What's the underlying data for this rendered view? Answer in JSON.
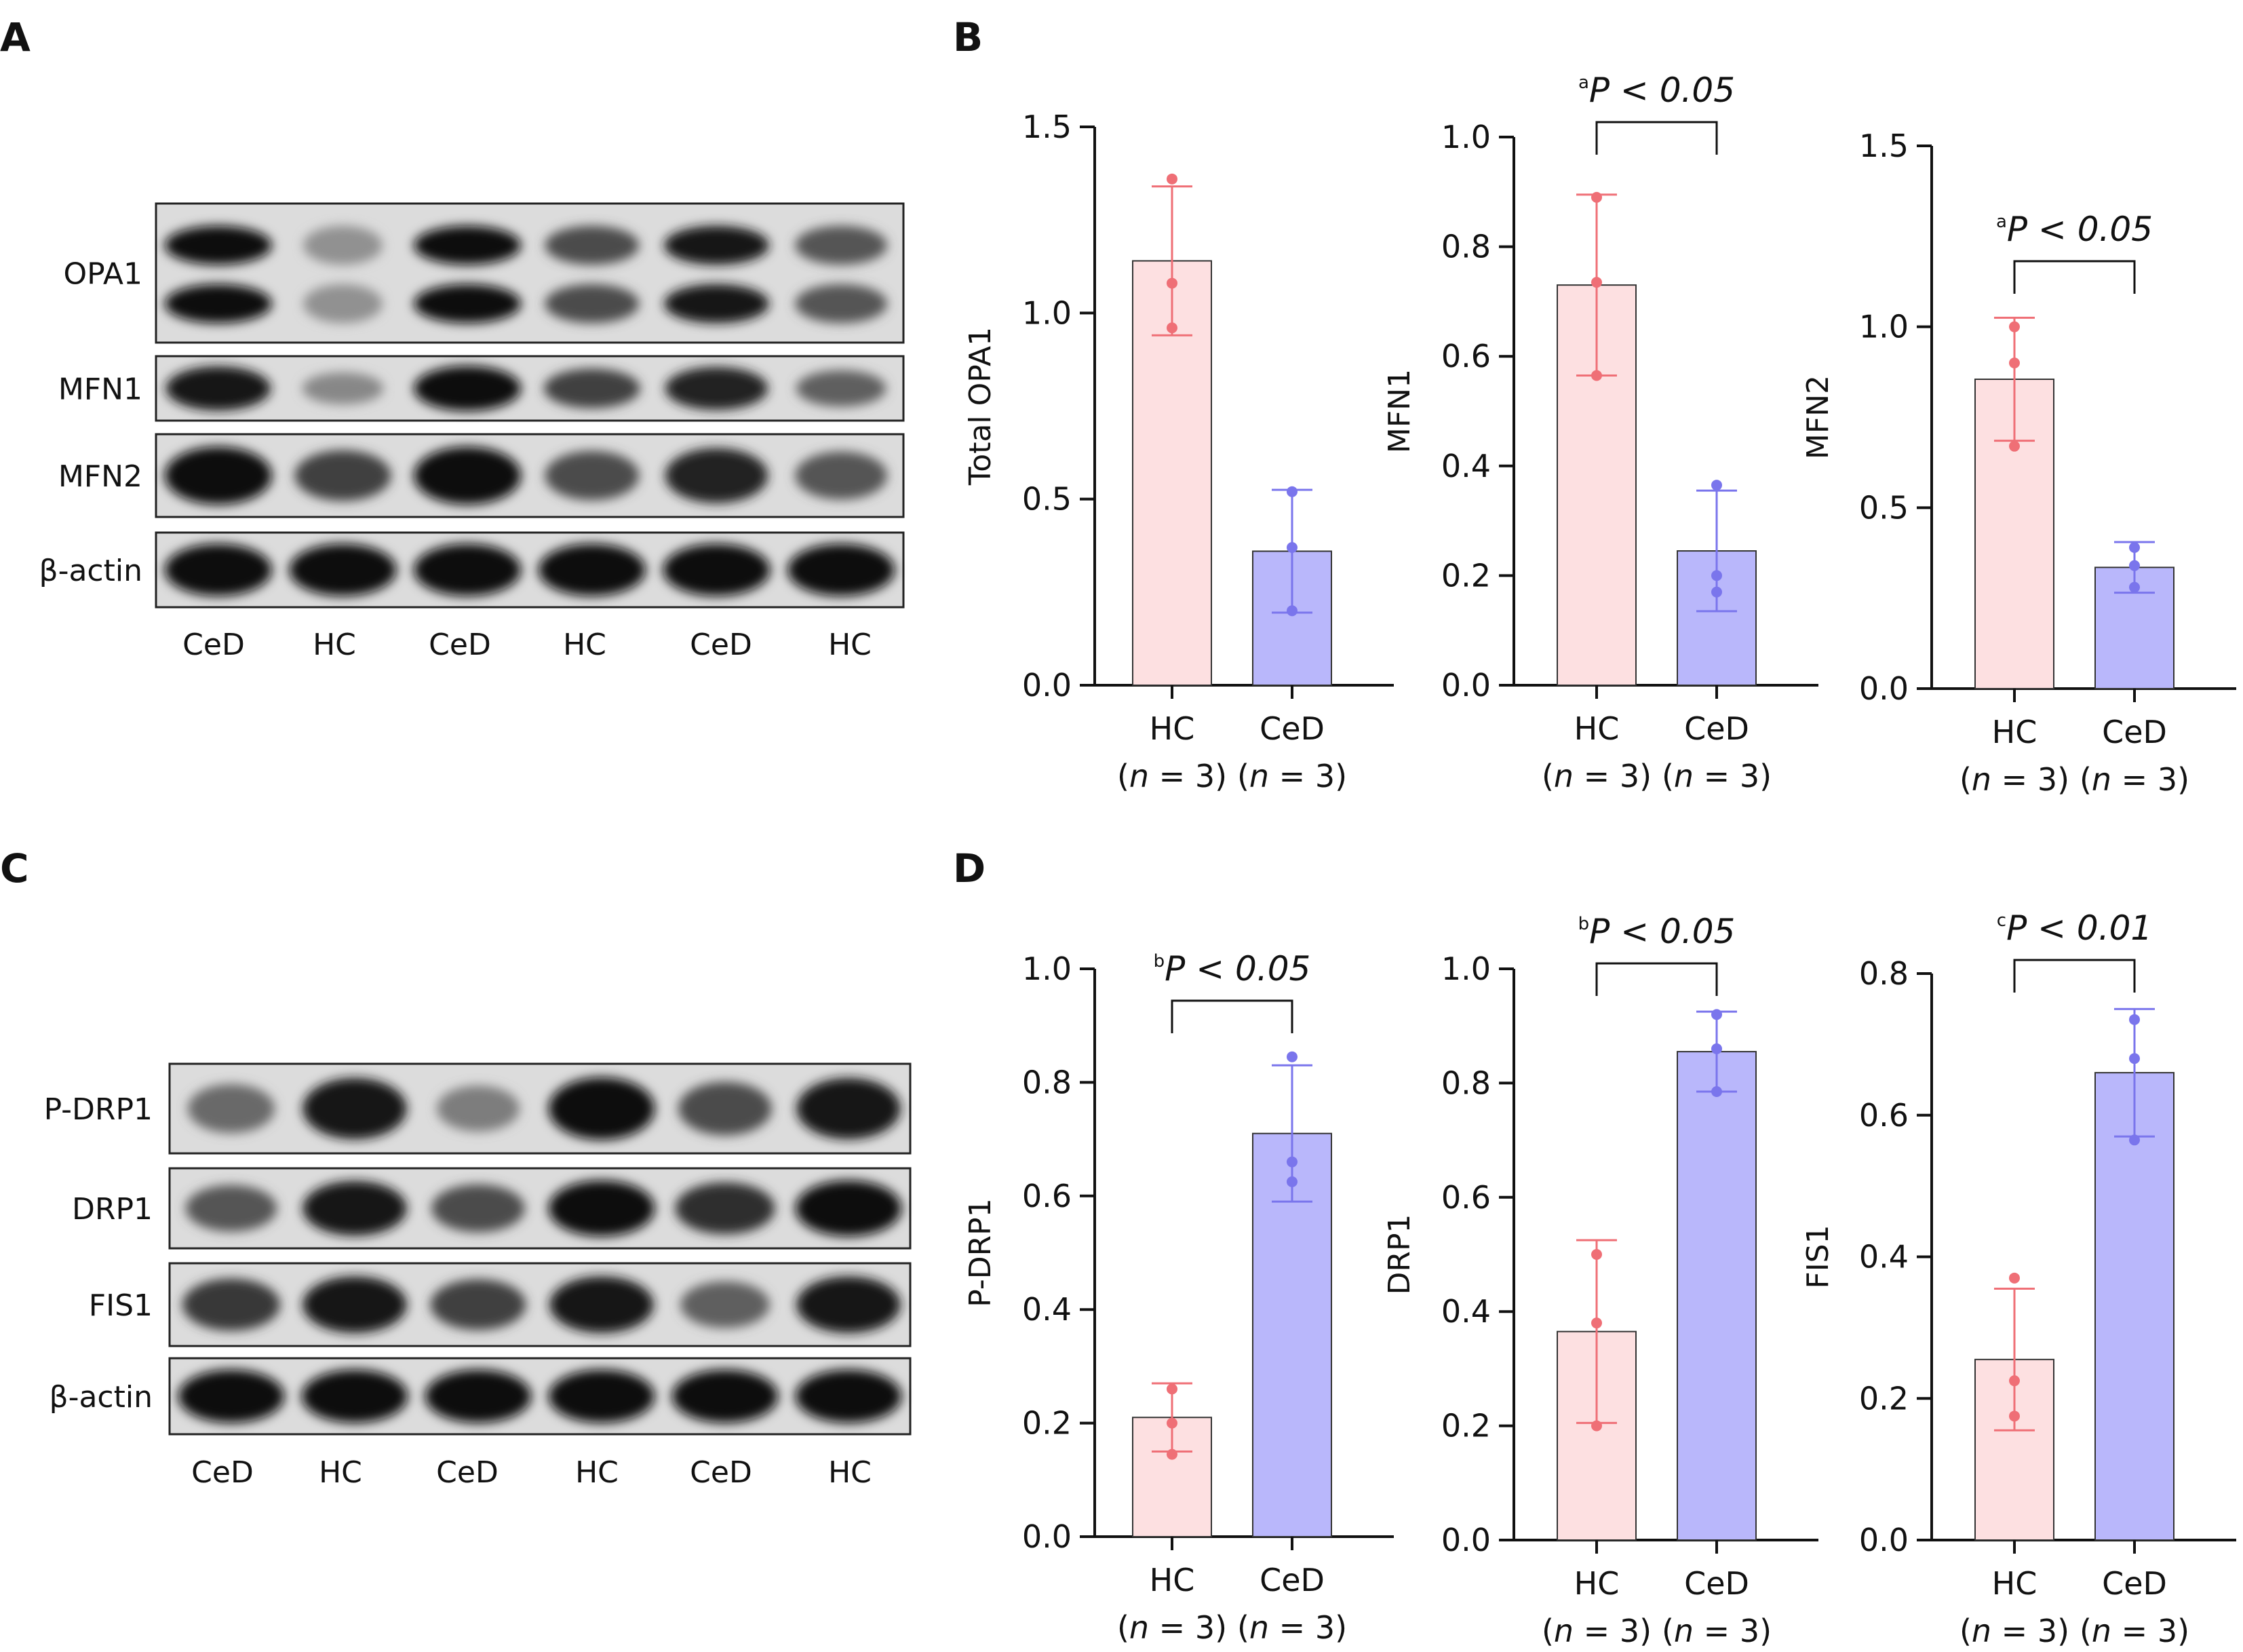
{
  "panel_labels": [
    "A",
    "B",
    "C",
    "D"
  ],
  "colors": {
    "hc_fill": "#fde0e1",
    "hc_line": "#ef6f76",
    "ced_fill": "#b9b7fb",
    "ced_line": "#7a75ec",
    "axis": "#111111"
  },
  "western_blots": [
    {
      "panel": "A",
      "rows": [
        {
          "label": "OPA1",
          "pattern": "double",
          "intensity": [
            1.0,
            0.35,
            1.0,
            0.7,
            0.95,
            0.65
          ]
        },
        {
          "label": "MFN1",
          "pattern": "single",
          "intensity": [
            0.95,
            0.4,
            1.0,
            0.75,
            0.9,
            0.6
          ]
        },
        {
          "label": "MFN2",
          "pattern": "single",
          "intensity": [
            1.0,
            0.75,
            1.0,
            0.7,
            0.9,
            0.65
          ]
        },
        {
          "label": "β-actin",
          "pattern": "single",
          "intensity": [
            1.0,
            1.0,
            1.0,
            1.0,
            1.0,
            1.0
          ]
        }
      ],
      "lanes": [
        "CeD",
        "HC",
        "CeD",
        "HC",
        "CeD",
        "HC"
      ]
    },
    {
      "panel": "C",
      "rows": [
        {
          "label": "P-DRP1",
          "pattern": "single",
          "intensity": [
            0.55,
            0.95,
            0.45,
            1.0,
            0.7,
            0.95
          ]
        },
        {
          "label": "DRP1",
          "pattern": "single",
          "intensity": [
            0.65,
            0.95,
            0.7,
            1.0,
            0.85,
            1.0
          ]
        },
        {
          "label": "FIS1",
          "pattern": "single",
          "intensity": [
            0.8,
            0.95,
            0.75,
            0.95,
            0.6,
            0.95
          ]
        },
        {
          "label": "β-actin",
          "pattern": "single",
          "intensity": [
            1.0,
            1.0,
            1.0,
            1.0,
            1.0,
            1.0
          ]
        }
      ],
      "lanes": [
        "CeD",
        "HC",
        "CeD",
        "HC",
        "CeD",
        "HC"
      ]
    }
  ],
  "chart_data": [
    {
      "type": "bar",
      "panel": "B",
      "ylabel": "Total OPA1",
      "ylim": [
        0,
        1.5
      ],
      "yticks": [
        "0.0",
        "0.5",
        "1.0",
        "1.5"
      ],
      "categories": [
        "HC",
        "CeD"
      ],
      "category_n": [
        "(n = 3)",
        "(n = 3)"
      ],
      "values": [
        1.14,
        0.36
      ],
      "error": [
        0.2,
        0.165
      ],
      "points": [
        [
          1.36,
          1.08,
          0.96
        ],
        [
          0.52,
          0.37,
          0.2
        ]
      ],
      "significance": null
    },
    {
      "type": "bar",
      "panel": "B",
      "ylabel": "MFN1",
      "ylim": [
        0,
        1.0
      ],
      "yticks": [
        "0.0",
        "0.2",
        "0.4",
        "0.6",
        "0.8",
        "1.0"
      ],
      "categories": [
        "HC",
        "CeD"
      ],
      "category_n": [
        "(n = 3)",
        "(n = 3)"
      ],
      "values": [
        0.73,
        0.245
      ],
      "error": [
        0.165,
        0.11
      ],
      "points": [
        [
          0.89,
          0.735,
          0.565
        ],
        [
          0.365,
          0.2,
          0.17
        ]
      ],
      "significance": {
        "superscript": "a",
        "text": "P < 0.05"
      }
    },
    {
      "type": "bar",
      "panel": "B",
      "ylabel": "MFN2",
      "ylim": [
        0,
        1.5
      ],
      "yticks": [
        "0.0",
        "0.5",
        "1.0",
        "1.5"
      ],
      "categories": [
        "HC",
        "CeD"
      ],
      "category_n": [
        "(n = 3)",
        "(n = 3)"
      ],
      "values": [
        0.855,
        0.335
      ],
      "error": [
        0.17,
        0.07
      ],
      "points": [
        [
          0.9,
          0.67,
          1.0
        ],
        [
          0.39,
          0.34,
          0.28
        ]
      ],
      "significance": {
        "superscript": "a",
        "text": "P < 0.05"
      }
    },
    {
      "type": "bar",
      "panel": "D",
      "ylabel": "P-DRP1",
      "ylim": [
        0,
        1.0
      ],
      "yticks": [
        "0.0",
        "0.2",
        "0.4",
        "0.6",
        "0.8",
        "1.0"
      ],
      "categories": [
        "HC",
        "CeD"
      ],
      "category_n": [
        "(n = 3)",
        "(n = 3)"
      ],
      "values": [
        0.21,
        0.71
      ],
      "error": [
        0.06,
        0.12
      ],
      "points": [
        [
          0.26,
          0.2,
          0.145
        ],
        [
          0.845,
          0.66,
          0.625
        ]
      ],
      "significance": {
        "superscript": "b",
        "text": "P < 0.05"
      }
    },
    {
      "type": "bar",
      "panel": "D",
      "ylabel": "DRP1",
      "ylim": [
        0,
        1.0
      ],
      "yticks": [
        "0.0",
        "0.2",
        "0.4",
        "0.6",
        "0.8",
        "1.0"
      ],
      "categories": [
        "HC",
        "CeD"
      ],
      "category_n": [
        "(n = 3)",
        "(n = 3)"
      ],
      "values": [
        0.365,
        0.855
      ],
      "error": [
        0.16,
        0.07
      ],
      "points": [
        [
          0.38,
          0.2,
          0.5
        ],
        [
          0.92,
          0.86,
          0.785
        ]
      ],
      "significance": {
        "superscript": "b",
        "text": "P < 0.05"
      }
    },
    {
      "type": "bar",
      "panel": "D",
      "ylabel": "FIS1",
      "ylim": [
        0,
        0.8
      ],
      "yticks": [
        "0.0",
        "0.2",
        "0.4",
        "0.6",
        "0.8"
      ],
      "categories": [
        "HC",
        "CeD"
      ],
      "category_n": [
        "(n = 3)",
        "(n = 3)"
      ],
      "values": [
        0.255,
        0.66
      ],
      "error": [
        0.1,
        0.09
      ],
      "points": [
        [
          0.37,
          0.225,
          0.175
        ],
        [
          0.735,
          0.68,
          0.565
        ]
      ],
      "significance": {
        "superscript": "c",
        "text": "P < 0.01"
      }
    }
  ]
}
